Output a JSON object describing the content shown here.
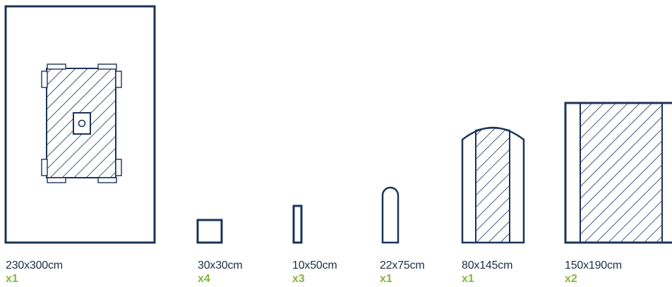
{
  "colors": {
    "outline": "#1b3458",
    "quantity": "#86b83a",
    "text": "#1f2f45"
  },
  "items": [
    {
      "size": "230x300",
      "unit": "cm",
      "quantity": "x1",
      "shape": "drape-with-window"
    },
    {
      "size": "30x30",
      "unit": "cm",
      "quantity": "x4",
      "shape": "square"
    },
    {
      "size": "10x50",
      "unit": "cm",
      "quantity": "x3",
      "shape": "narrow-strip"
    },
    {
      "size": "22x75",
      "unit": "cm",
      "quantity": "x1",
      "shape": "rounded-sleeve"
    },
    {
      "size": "80x145",
      "unit": "cm",
      "quantity": "x1",
      "shape": "arched-cover"
    },
    {
      "size": "150x190",
      "unit": "cm",
      "quantity": "x2",
      "shape": "hatched-sheet"
    }
  ]
}
